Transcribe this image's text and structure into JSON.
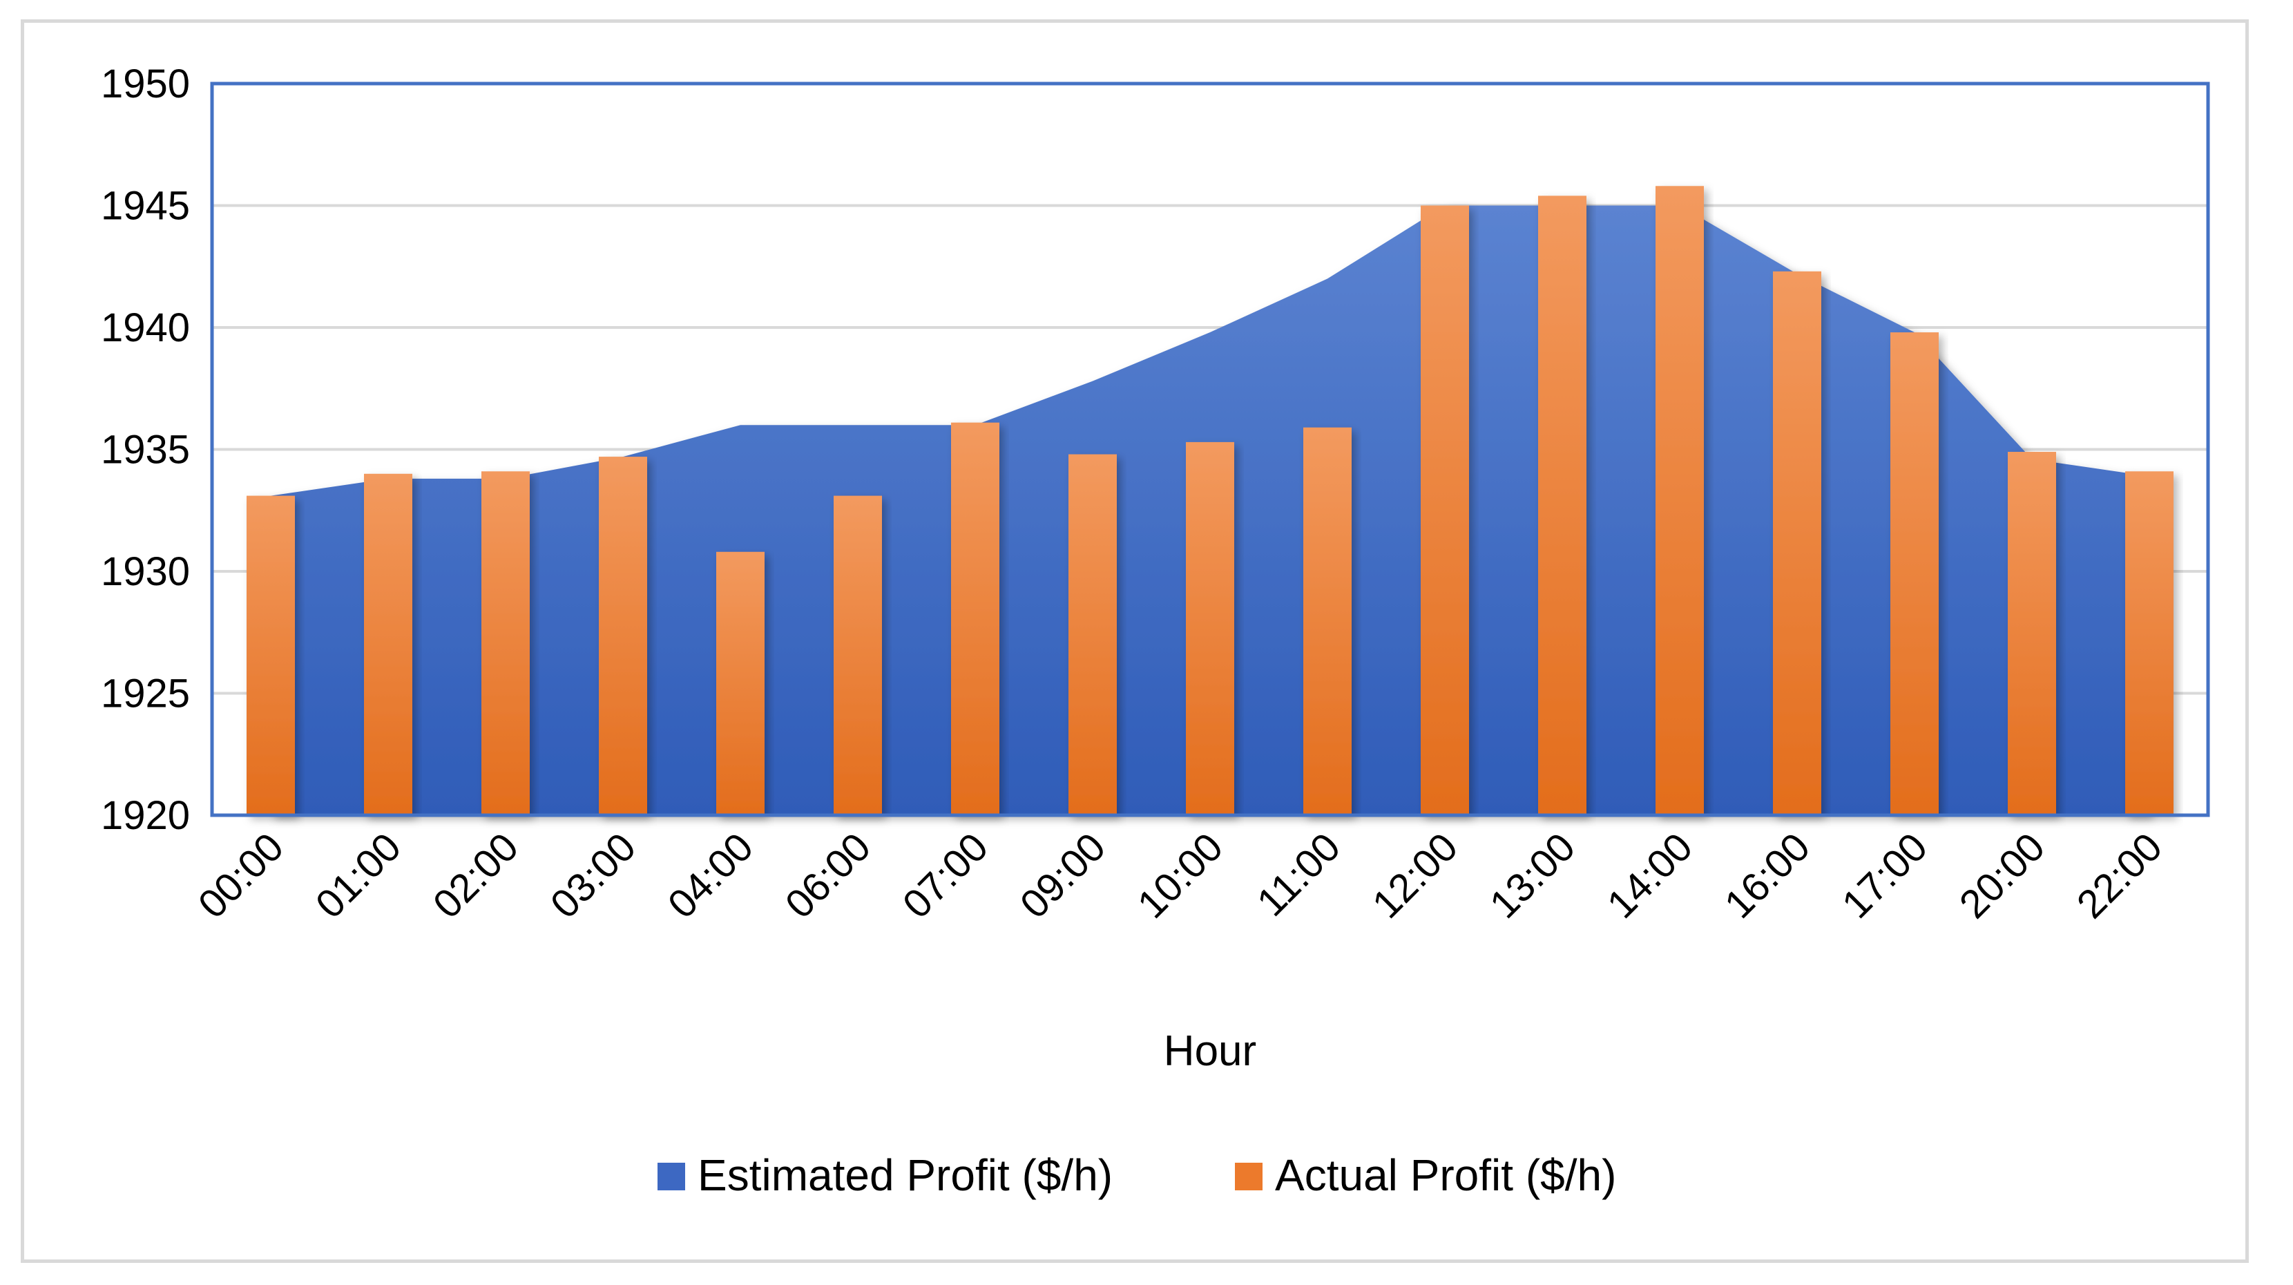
{
  "chart_data": {
    "type": "bar",
    "title": "",
    "xlabel": "Hour",
    "ylabel": "",
    "ylim": [
      1920,
      1950
    ],
    "yticks": [
      1920,
      1925,
      1930,
      1935,
      1940,
      1945,
      1950
    ],
    "grid": true,
    "legend_position": "bottom",
    "categories": [
      "00:00",
      "01:00",
      "02:00",
      "03:00",
      "04:00",
      "06:00",
      "07:00",
      "09:00",
      "10:00",
      "11:00",
      "12:00",
      "13:00",
      "14:00",
      "16:00",
      "17:00",
      "20:00",
      "22:00"
    ],
    "series": [
      {
        "name": "Estimated Profit ($/h)",
        "kind": "area",
        "color": "#4472C4",
        "values": [
          1933.1,
          1933.8,
          1933.8,
          1934.7,
          1936.0,
          1936.0,
          1936.0,
          1937.8,
          1939.8,
          1942.0,
          1945.0,
          1945.0,
          1945.0,
          1942.2,
          1939.8,
          1934.6,
          1933.9
        ]
      },
      {
        "name": "Actual Profit ($/h)",
        "kind": "bar",
        "color": "#ED7D31",
        "values": [
          1933.1,
          1934.0,
          1934.1,
          1934.7,
          1930.8,
          1933.1,
          1936.1,
          1934.8,
          1935.3,
          1935.9,
          1945.0,
          1945.4,
          1945.8,
          1942.3,
          1939.8,
          1934.9,
          1934.1
        ]
      }
    ]
  }
}
